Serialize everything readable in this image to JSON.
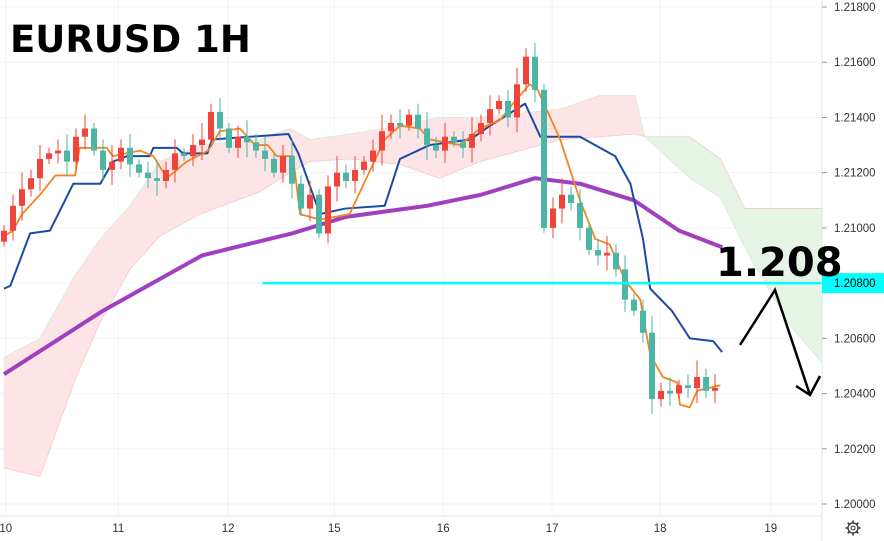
{
  "chart_data": {
    "type": "candlestick",
    "title": "EURUSD 1H",
    "annotation": "1.208",
    "price_line": {
      "value": 1.208,
      "label": "1.20800",
      "color": "#00ffff",
      "from_bar": 28.7
    },
    "ylim": [
      1.2,
      1.218
    ],
    "y_ticks": [
      "1.21800",
      "1.21600",
      "1.21400",
      "1.21200",
      "1.21000",
      "1.20800",
      "1.20600",
      "1.20400",
      "1.20200",
      "1.20000"
    ],
    "x_ticks": [
      {
        "label": "10",
        "bar": 0.2
      },
      {
        "label": "11",
        "bar": 12.7
      },
      {
        "label": "12",
        "bar": 24.9
      },
      {
        "label": "15",
        "bar": 36.7
      },
      {
        "label": "16",
        "bar": 48.8
      },
      {
        "label": "17",
        "bar": 60.9
      },
      {
        "label": "18",
        "bar": 72.9
      },
      {
        "label": "19",
        "bar": 85.2
      }
    ],
    "grid": true,
    "colors": {
      "rising": "#f0443a",
      "falling": "#4cb5a3",
      "tenkan": "#f5841f",
      "kijun": "#1a4aa8",
      "ma": "#a040c0",
      "cloud_bear": "#fde4e6",
      "cloud_bull": "#e6f4e6",
      "grid": "#f0f3fa"
    },
    "closes": [
      1.2099,
      1.2108,
      1.2114,
      1.2118,
      1.2125,
      1.2127,
      1.2128,
      1.2124,
      1.2133,
      1.2136,
      1.2128,
      1.2121,
      1.2124,
      1.2129,
      1.2123,
      1.212,
      1.2118,
      1.2117,
      1.2121,
      1.2127,
      1.2126,
      1.213,
      1.2132,
      1.2142,
      1.2136,
      1.2129,
      1.2133,
      1.2131,
      1.2128,
      1.2125,
      1.212,
      1.2126,
      1.2116,
      1.2107,
      1.2112,
      1.2098,
      1.2115,
      1.212,
      1.2117,
      1.2121,
      1.2124,
      1.2128,
      1.2135,
      1.2138,
      1.2137,
      1.2141,
      1.2136,
      1.213,
      1.2128,
      1.2133,
      1.2131,
      1.2129,
      1.2134,
      1.2138,
      1.2143,
      1.2146,
      1.214,
      1.2152,
      1.2162,
      1.215,
      1.21,
      1.2107,
      1.2112,
      1.2109,
      1.21,
      1.2092,
      1.209,
      1.2091,
      1.2085,
      1.2074,
      1.207,
      1.2062,
      1.2038,
      1.2041,
      1.204,
      1.2043,
      1.2042,
      1.2046,
      1.2041,
      1.2042
    ],
    "tenkan": [
      [
        0,
        1.2097
      ],
      [
        1,
        1.2099
      ],
      [
        2,
        1.2105
      ],
      [
        4,
        1.2112
      ],
      [
        5.7,
        1.2119
      ],
      [
        7.9,
        1.2119
      ],
      [
        8.4,
        1.2129
      ],
      [
        11.4,
        1.2129
      ],
      [
        12.1,
        1.2126
      ],
      [
        15.1,
        1.2128
      ],
      [
        16.6,
        1.2126
      ],
      [
        18.1,
        1.2118
      ],
      [
        20.3,
        1.2124
      ],
      [
        22.7,
        1.2128
      ],
      [
        24,
        1.2135
      ],
      [
        26.2,
        1.2136
      ],
      [
        27.9,
        1.213
      ],
      [
        29.3,
        1.213
      ],
      [
        30.3,
        1.2126
      ],
      [
        32.1,
        1.2126
      ],
      [
        32.9,
        1.2105
      ],
      [
        35.1,
        1.2103
      ],
      [
        38.4,
        1.2105
      ],
      [
        40.7,
        1.2121
      ],
      [
        42.3,
        1.2132
      ],
      [
        44,
        1.2137
      ],
      [
        46.2,
        1.2136
      ],
      [
        47.3,
        1.2132
      ],
      [
        50.7,
        1.213
      ],
      [
        52.9,
        1.2136
      ],
      [
        55.1,
        1.2139
      ],
      [
        56.8,
        1.2146
      ],
      [
        58.4,
        1.2152
      ],
      [
        59.3,
        1.215
      ],
      [
        61.8,
        1.2132
      ],
      [
        64,
        1.211
      ],
      [
        65.7,
        1.2096
      ],
      [
        67.3,
        1.2094
      ],
      [
        69,
        1.2081
      ],
      [
        70.7,
        1.2074
      ],
      [
        71.8,
        1.2054
      ],
      [
        73.2,
        1.2046
      ],
      [
        74.8,
        1.2044
      ],
      [
        75.1,
        1.2036
      ],
      [
        76.2,
        1.2035
      ],
      [
        77,
        1.2041
      ],
      [
        79.6,
        1.2043
      ]
    ],
    "kijun": [
      [
        0,
        1.2078
      ],
      [
        0.7,
        1.2079
      ],
      [
        2.9,
        1.2098
      ],
      [
        5.1,
        1.2099
      ],
      [
        7.7,
        1.2116
      ],
      [
        10.7,
        1.2116
      ],
      [
        12.1,
        1.2124
      ],
      [
        13.7,
        1.2126
      ],
      [
        16.2,
        1.2126
      ],
      [
        16.6,
        1.2129
      ],
      [
        19.2,
        1.2129
      ],
      [
        19.9,
        1.2127
      ],
      [
        22.6,
        1.2127
      ],
      [
        23.1,
        1.2132
      ],
      [
        31.6,
        1.2134
      ],
      [
        32.7,
        1.2127
      ],
      [
        35.1,
        1.2105
      ],
      [
        37.9,
        1.2107
      ],
      [
        42.3,
        1.2108
      ],
      [
        44,
        1.2125
      ],
      [
        47.3,
        1.213
      ],
      [
        51.8,
        1.2132
      ],
      [
        54,
        1.2137
      ],
      [
        57.9,
        1.2145
      ],
      [
        59.6,
        1.2133
      ],
      [
        64,
        1.2133
      ],
      [
        67.9,
        1.2126
      ],
      [
        69.6,
        1.2116
      ],
      [
        71,
        1.2096
      ],
      [
        71.8,
        1.2078
      ],
      [
        74.2,
        1.207
      ],
      [
        76.2,
        1.206
      ],
      [
        78.8,
        1.2059
      ],
      [
        79.8,
        1.2055
      ]
    ],
    "ma": [
      [
        0,
        1.2047
      ],
      [
        11,
        1.207
      ],
      [
        22,
        1.209
      ],
      [
        32,
        1.2098
      ],
      [
        38,
        1.2104
      ],
      [
        47,
        1.2108
      ],
      [
        53,
        1.2112
      ],
      [
        59,
        1.2118
      ],
      [
        64,
        1.2116
      ],
      [
        70,
        1.211
      ],
      [
        75,
        1.2099
      ],
      [
        79.8,
        1.2093
      ]
    ],
    "cloud": [
      [
        0,
        1.2013,
        1.2053
      ],
      [
        4,
        1.201,
        1.206
      ],
      [
        7.9,
        1.2045,
        1.2083
      ],
      [
        10.7,
        1.2066,
        1.2096
      ],
      [
        14,
        1.2085,
        1.2108
      ],
      [
        17.3,
        1.2097,
        1.2124
      ],
      [
        21.8,
        1.2105,
        1.213
      ],
      [
        28.4,
        1.2113,
        1.2132
      ],
      [
        31.8,
        1.212,
        1.2136
      ],
      [
        34,
        1.2124,
        1.2132
      ],
      [
        38.4,
        1.2125,
        1.2134
      ],
      [
        44,
        1.2123,
        1.2137
      ],
      [
        48.4,
        1.2118,
        1.214
      ],
      [
        52.9,
        1.2124,
        1.214
      ],
      [
        61.8,
        1.2132,
        1.2143
      ],
      [
        66.2,
        1.2133,
        1.2148
      ],
      [
        70.1,
        1.2134,
        1.2148
      ],
      [
        71.2,
        1.2133,
        1.2133
      ],
      [
        76.2,
        1.2133,
        1.2118
      ],
      [
        79.6,
        1.2125,
        1.2111
      ],
      [
        82.3,
        1.2107,
        1.2093
      ],
      [
        84,
        1.2107,
        1.2083
      ],
      [
        87.3,
        1.2107,
        1.2065
      ],
      [
        90.9,
        1.2107,
        1.2051
      ]
    ]
  }
}
